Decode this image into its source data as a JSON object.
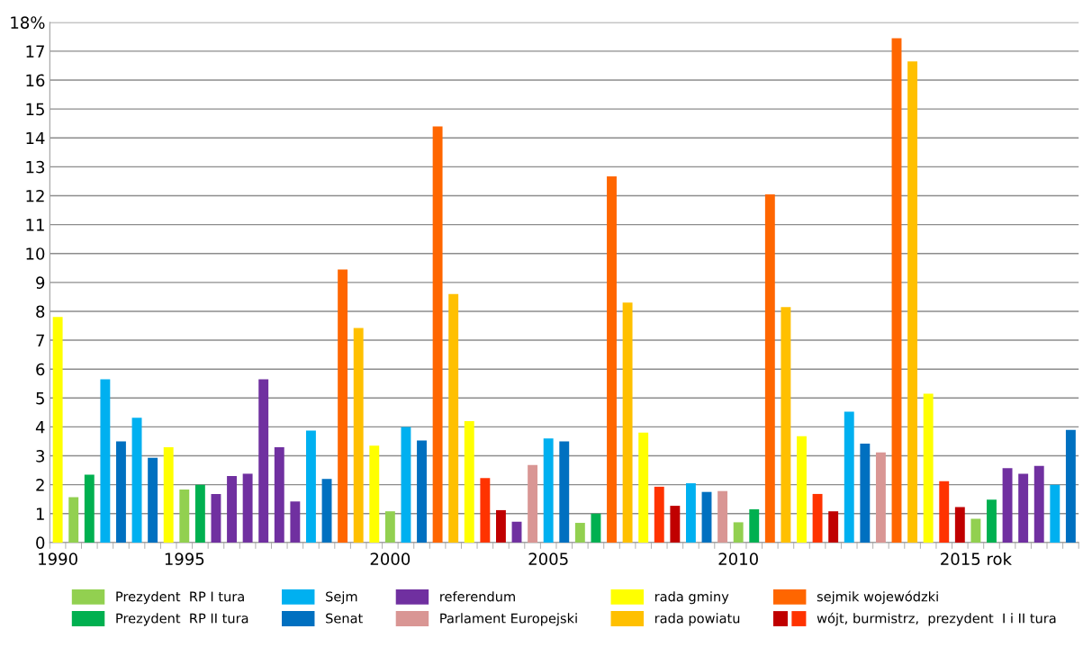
{
  "chart_data": {
    "type": "bar",
    "categories": [
      "1990",
      null,
      null,
      null,
      null,
      null,
      null,
      null,
      "1995",
      null,
      null,
      null,
      null,
      null,
      null,
      null,
      null,
      null,
      null,
      null,
      null,
      "2000",
      null,
      null,
      null,
      null,
      null,
      null,
      null,
      null,
      null,
      "2005",
      null,
      null,
      null,
      null,
      null,
      null,
      null,
      null,
      null,
      null,
      null,
      "2010",
      null,
      null,
      null,
      null,
      null,
      null,
      null,
      null,
      null,
      null,
      null,
      null,
      null,
      null,
      "2015 rok",
      null,
      null,
      null,
      null,
      null,
      null
    ],
    "series": [
      {
        "name": "Prezydent  RP I tura",
        "color": "#92d050",
        "values": [
          null,
          1.57,
          null,
          null,
          null,
          null,
          null,
          null,
          1.83,
          null,
          null,
          null,
          null,
          null,
          null,
          null,
          null,
          null,
          null,
          null,
          null,
          1.08,
          null,
          null,
          null,
          null,
          null,
          null,
          null,
          null,
          null,
          null,
          null,
          0.68,
          null,
          null,
          null,
          null,
          null,
          null,
          null,
          null,
          null,
          0.7,
          null,
          null,
          null,
          null,
          null,
          null,
          null,
          null,
          null,
          null,
          null,
          null,
          null,
          null,
          0.82,
          null,
          null,
          null,
          null,
          null,
          null
        ]
      },
      {
        "name": "Prezydent  RP II tura",
        "color": "#00b050",
        "values": [
          null,
          null,
          2.35,
          null,
          null,
          null,
          null,
          null,
          null,
          2.0,
          null,
          null,
          null,
          null,
          null,
          null,
          null,
          null,
          null,
          null,
          null,
          null,
          null,
          null,
          null,
          null,
          null,
          null,
          null,
          null,
          null,
          null,
          null,
          null,
          1.0,
          null,
          null,
          null,
          null,
          null,
          null,
          null,
          null,
          null,
          1.15,
          null,
          null,
          null,
          null,
          null,
          null,
          null,
          null,
          null,
          null,
          null,
          null,
          null,
          null,
          1.48,
          null,
          null,
          null,
          null,
          null
        ]
      },
      {
        "name": "Sejm",
        "color": "#00b0f0",
        "values": [
          null,
          null,
          null,
          5.65,
          null,
          4.32,
          null,
          null,
          null,
          null,
          null,
          null,
          null,
          null,
          null,
          null,
          3.87,
          null,
          null,
          null,
          null,
          null,
          4.0,
          null,
          null,
          null,
          null,
          null,
          null,
          null,
          null,
          3.6,
          null,
          null,
          null,
          null,
          null,
          null,
          null,
          null,
          2.05,
          null,
          null,
          null,
          null,
          null,
          null,
          null,
          null,
          null,
          4.53,
          null,
          null,
          null,
          null,
          null,
          null,
          null,
          null,
          null,
          null,
          null,
          null,
          2.0,
          null
        ]
      },
      {
        "name": "Senat",
        "color": "#0070c0",
        "values": [
          null,
          null,
          null,
          null,
          3.5,
          null,
          2.93,
          null,
          null,
          null,
          null,
          null,
          null,
          null,
          null,
          null,
          null,
          2.2,
          null,
          null,
          null,
          null,
          null,
          3.53,
          null,
          null,
          null,
          null,
          null,
          null,
          null,
          null,
          3.5,
          null,
          null,
          null,
          null,
          null,
          null,
          null,
          null,
          1.75,
          null,
          null,
          null,
          null,
          null,
          null,
          null,
          null,
          null,
          3.42,
          null,
          null,
          null,
          null,
          null,
          null,
          null,
          null,
          null,
          null,
          null,
          null,
          3.9
        ]
      },
      {
        "name": "referendum",
        "color": "#7030a0",
        "values": [
          null,
          null,
          null,
          null,
          null,
          null,
          null,
          null,
          null,
          null,
          1.68,
          2.3,
          2.38,
          5.65,
          3.3,
          1.42,
          null,
          null,
          null,
          null,
          null,
          null,
          null,
          null,
          null,
          null,
          null,
          null,
          null,
          0.72,
          null,
          null,
          null,
          null,
          null,
          null,
          null,
          null,
          null,
          null,
          null,
          null,
          null,
          null,
          null,
          null,
          null,
          null,
          null,
          null,
          null,
          null,
          null,
          null,
          null,
          null,
          null,
          null,
          null,
          null,
          2.57,
          2.38,
          2.65,
          null,
          null
        ]
      },
      {
        "name": "Parlament Europejski",
        "color": "#d99694",
        "values": [
          null,
          null,
          null,
          null,
          null,
          null,
          null,
          null,
          null,
          null,
          null,
          null,
          null,
          null,
          null,
          null,
          null,
          null,
          null,
          null,
          null,
          null,
          null,
          null,
          null,
          null,
          null,
          null,
          null,
          null,
          2.68,
          null,
          null,
          null,
          null,
          null,
          null,
          null,
          null,
          null,
          null,
          null,
          1.78,
          null,
          null,
          null,
          null,
          null,
          null,
          null,
          null,
          null,
          3.12,
          null,
          null,
          null,
          null,
          null,
          null,
          null,
          null,
          null,
          null,
          null,
          null
        ]
      },
      {
        "name": "rada gminy",
        "color": "#ffff00",
        "values": [
          7.8,
          null,
          null,
          null,
          null,
          null,
          null,
          3.3,
          null,
          null,
          null,
          null,
          null,
          null,
          null,
          null,
          null,
          null,
          null,
          null,
          3.35,
          null,
          null,
          null,
          null,
          null,
          4.2,
          null,
          null,
          null,
          null,
          null,
          null,
          null,
          null,
          null,
          null,
          3.8,
          null,
          null,
          null,
          null,
          null,
          null,
          null,
          null,
          null,
          3.68,
          null,
          null,
          null,
          null,
          null,
          null,
          null,
          5.15,
          null,
          null,
          null,
          null,
          null,
          null,
          null,
          null,
          null
        ]
      },
      {
        "name": "rada powiatu",
        "color": "#ffc000",
        "values": [
          null,
          null,
          null,
          null,
          null,
          null,
          null,
          null,
          null,
          null,
          null,
          null,
          null,
          null,
          null,
          null,
          null,
          null,
          null,
          7.42,
          null,
          null,
          null,
          null,
          null,
          8.6,
          null,
          null,
          null,
          null,
          null,
          null,
          null,
          null,
          null,
          null,
          8.3,
          null,
          null,
          null,
          null,
          null,
          null,
          null,
          null,
          null,
          8.15,
          null,
          null,
          null,
          null,
          null,
          null,
          null,
          16.65,
          null,
          null,
          null,
          null,
          null,
          null,
          null,
          null,
          null,
          null
        ]
      },
      {
        "name": "sejmik wojewódzki",
        "color": "#ff6600",
        "values": [
          null,
          null,
          null,
          null,
          null,
          null,
          null,
          null,
          null,
          null,
          null,
          null,
          null,
          null,
          null,
          null,
          null,
          null,
          9.45,
          null,
          null,
          null,
          null,
          null,
          14.4,
          null,
          null,
          null,
          null,
          null,
          null,
          null,
          null,
          null,
          null,
          12.67,
          null,
          null,
          null,
          null,
          null,
          null,
          null,
          null,
          null,
          12.05,
          null,
          null,
          null,
          null,
          null,
          null,
          null,
          17.45,
          null,
          null,
          null,
          null,
          null,
          null,
          null,
          null,
          null,
          null,
          null
        ]
      },
      {
        "name": "wójt, burmistrz,  prezydent  I i II tura",
        "color": "#ff3300",
        "values": [
          null,
          null,
          null,
          null,
          null,
          null,
          null,
          null,
          null,
          null,
          null,
          null,
          null,
          null,
          null,
          null,
          null,
          null,
          null,
          null,
          null,
          null,
          null,
          null,
          null,
          null,
          null,
          2.23,
          null,
          null,
          null,
          null,
          null,
          null,
          null,
          null,
          null,
          null,
          1.93,
          null,
          null,
          null,
          null,
          null,
          null,
          null,
          null,
          null,
          1.68,
          null,
          null,
          null,
          null,
          null,
          null,
          null,
          2.12,
          null,
          null,
          null,
          null,
          null,
          null,
          null,
          null
        ]
      },
      {
        "color": "#c00000",
        "values": [
          null,
          null,
          null,
          null,
          null,
          null,
          null,
          null,
          null,
          null,
          null,
          null,
          null,
          null,
          null,
          null,
          null,
          null,
          null,
          null,
          null,
          null,
          null,
          null,
          null,
          null,
          null,
          null,
          1.12,
          null,
          null,
          null,
          null,
          null,
          null,
          null,
          null,
          null,
          null,
          1.27,
          null,
          null,
          null,
          null,
          null,
          null,
          null,
          null,
          null,
          1.08,
          null,
          null,
          null,
          null,
          null,
          null,
          null,
          1.23,
          null,
          null,
          null,
          null,
          null,
          null,
          null
        ]
      }
    ],
    "ylim": [
      0,
      18
    ],
    "yticks": [
      0,
      1,
      2,
      3,
      4,
      5,
      6,
      7,
      8,
      9,
      10,
      11,
      12,
      13,
      14,
      15,
      16,
      17,
      {
        "value": 18,
        "label": "18%"
      }
    ],
    "grid": "y",
    "legend": "bottom"
  }
}
